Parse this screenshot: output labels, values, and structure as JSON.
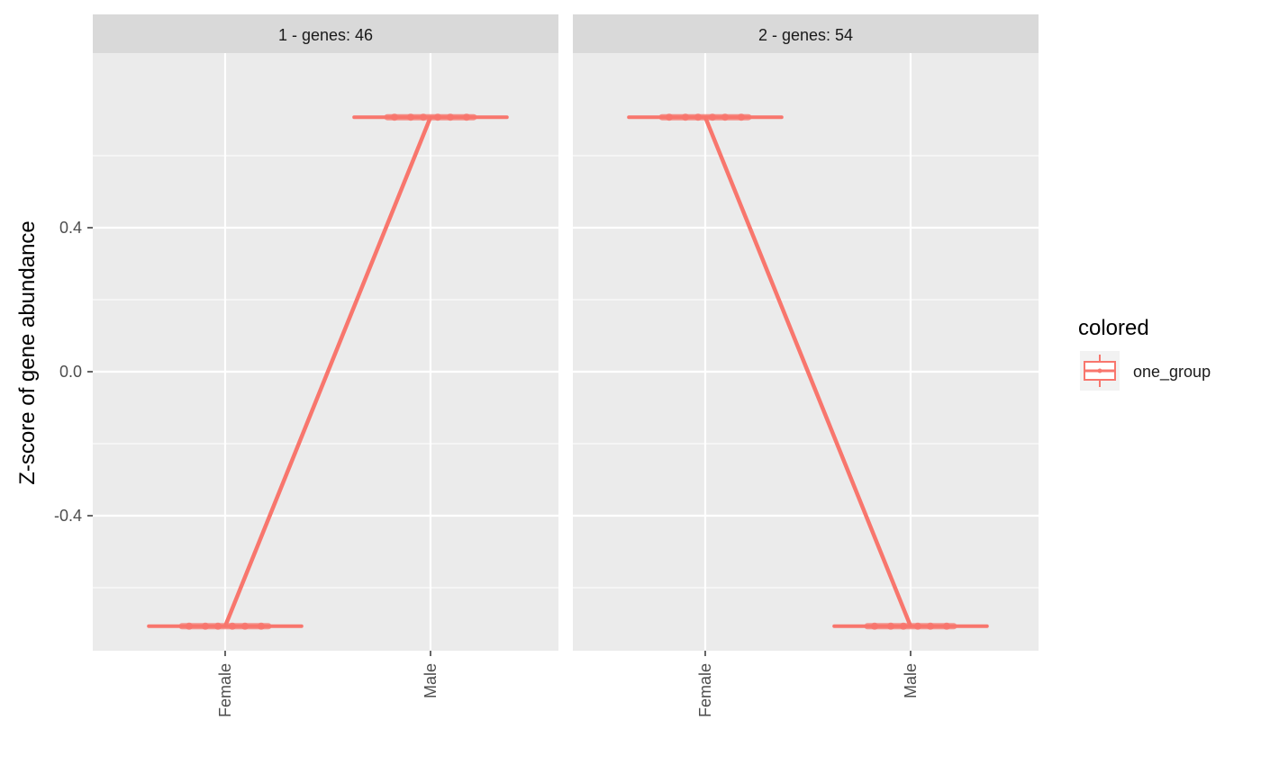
{
  "chart_data": {
    "type": "line",
    "ylabel": "Z-score of gene abundance",
    "xlabel": "",
    "ylim": [
      -0.775,
      0.885
    ],
    "y_ticks": [
      -0.4,
      0.0,
      0.4
    ],
    "y_tick_labels": [
      "-0.4",
      "0.0",
      "0.4"
    ],
    "categories": [
      "Female",
      "Male"
    ],
    "grid": true,
    "legend": {
      "title": "colored",
      "placement": "right",
      "entries": [
        {
          "label": "one_group",
          "color": "#F8766D"
        }
      ]
    },
    "facets": [
      {
        "title": "1 - genes: 46",
        "series": [
          {
            "name": "one_group",
            "values": [
              -0.707,
              0.707
            ]
          }
        ]
      },
      {
        "title": "2 - genes: 54",
        "series": [
          {
            "name": "one_group",
            "values": [
              0.707,
              -0.707
            ]
          }
        ]
      }
    ],
    "colors": {
      "series": "#F8766D",
      "panel_bg": "#EBEBEB",
      "strip_bg": "#D9D9D9",
      "grid": "#FFFFFF"
    }
  }
}
